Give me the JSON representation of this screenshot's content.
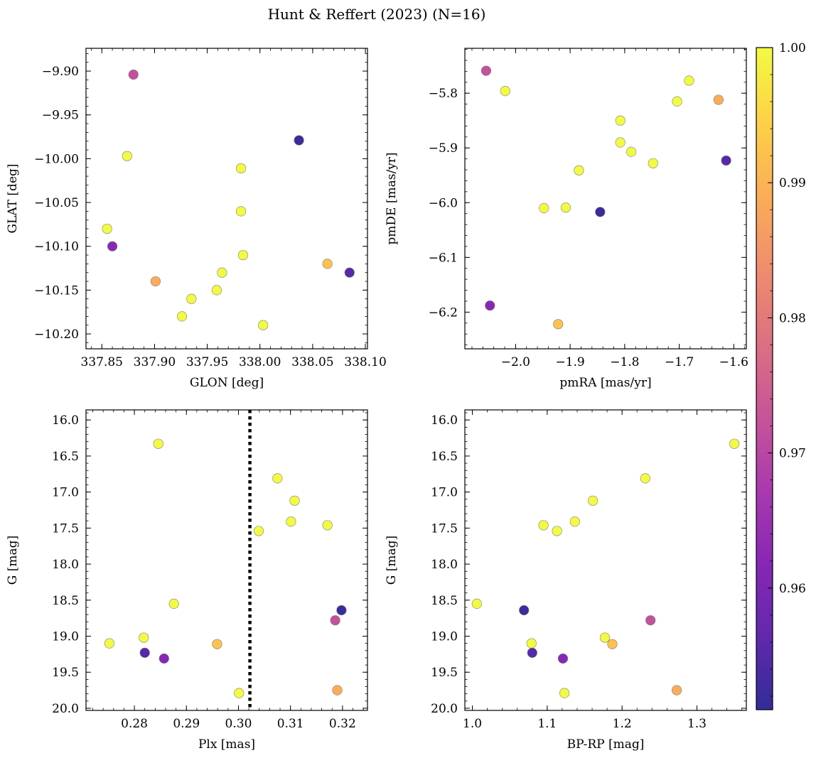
{
  "figure": {
    "title": "Hunt & Reffert (2023) (N=16)",
    "colormap": [
      "#0d0887",
      "#46039f",
      "#7201a8",
      "#9c179e",
      "#bd3786",
      "#d8576b",
      "#ed7953",
      "#fb9f3a",
      "#fdca26",
      "#f0f921"
    ],
    "marker_edge": "#808080",
    "colorbar": {
      "range": [
        0.951,
        1.0
      ],
      "ticks": [
        0.96,
        0.97,
        0.98,
        0.99,
        1.0
      ],
      "tick_labels": [
        "0.96",
        "0.97",
        "0.98",
        "0.99",
        "1.00"
      ]
    }
  },
  "chart_data": [
    {
      "type": "scatter",
      "xlabel": "GLON [deg]",
      "ylabel": "GLAT [deg]",
      "xlim": [
        337.835,
        338.102
      ],
      "ylim": [
        -10.217,
        -9.874
      ],
      "xticks": [
        337.85,
        337.9,
        337.95,
        338.0,
        338.05,
        338.1
      ],
      "xtick_labels": [
        "337.85",
        "337.90",
        "337.95",
        "338.00",
        "338.05",
        "338.10"
      ],
      "yticks": [
        -9.9,
        -9.95,
        -10.0,
        -10.05,
        -10.1,
        -10.15,
        -10.2
      ],
      "ytick_labels": [
        "−9.90",
        "−9.95",
        "−10.00",
        "−10.05",
        "−10.10",
        "−10.15",
        "−10.20"
      ],
      "points": [
        {
          "x": 337.88,
          "y": -9.904,
          "c": 0.972
        },
        {
          "x": 337.874,
          "y": -9.997,
          "c": 1.0
        },
        {
          "x": 338.037,
          "y": -9.979,
          "c": 0.952
        },
        {
          "x": 337.982,
          "y": -10.011,
          "c": 1.0
        },
        {
          "x": 337.982,
          "y": -10.06,
          "c": 1.0
        },
        {
          "x": 337.855,
          "y": -10.08,
          "c": 1.0
        },
        {
          "x": 337.86,
          "y": -10.1,
          "c": 0.962
        },
        {
          "x": 337.984,
          "y": -10.11,
          "c": 1.0
        },
        {
          "x": 338.064,
          "y": -10.12,
          "c": 0.992
        },
        {
          "x": 338.085,
          "y": -10.13,
          "c": 0.955
        },
        {
          "x": 337.964,
          "y": -10.13,
          "c": 1.0
        },
        {
          "x": 337.901,
          "y": -10.14,
          "c": 0.989
        },
        {
          "x": 337.959,
          "y": -10.15,
          "c": 1.0
        },
        {
          "x": 337.935,
          "y": -10.16,
          "c": 1.0
        },
        {
          "x": 337.926,
          "y": -10.18,
          "c": 1.0
        },
        {
          "x": 338.003,
          "y": -10.19,
          "c": 1.0
        }
      ]
    },
    {
      "type": "scatter",
      "xlabel": "pmRA [mas/yr]",
      "ylabel": "pmDE [mas/yr]",
      "xlim": [
        -2.093,
        -1.577
      ],
      "ylim": [
        -6.267,
        -5.718
      ],
      "xticks": [
        -2.0,
        -1.9,
        -1.8,
        -1.7,
        -1.6
      ],
      "xtick_labels": [
        "−2.0",
        "−1.9",
        "−1.8",
        "−1.7",
        "−1.6"
      ],
      "yticks": [
        -5.8,
        -5.9,
        -6.0,
        -6.1,
        -6.2
      ],
      "ytick_labels": [
        "−5.8",
        "−5.9",
        "−6.0",
        "−6.1",
        "−6.2"
      ],
      "points": [
        {
          "x": -2.054,
          "y": -5.759,
          "c": 0.972
        },
        {
          "x": -2.019,
          "y": -5.796,
          "c": 1.0
        },
        {
          "x": -1.682,
          "y": -5.777,
          "c": 1.0
        },
        {
          "x": -1.704,
          "y": -5.815,
          "c": 1.0
        },
        {
          "x": -1.628,
          "y": -5.812,
          "c": 0.989
        },
        {
          "x": -1.808,
          "y": -5.85,
          "c": 1.0
        },
        {
          "x": -1.808,
          "y": -5.89,
          "c": 1.0
        },
        {
          "x": -1.788,
          "y": -5.907,
          "c": 1.0
        },
        {
          "x": -1.748,
          "y": -5.928,
          "c": 1.0
        },
        {
          "x": -1.614,
          "y": -5.923,
          "c": 0.955
        },
        {
          "x": -1.884,
          "y": -5.941,
          "c": 1.0
        },
        {
          "x": -1.948,
          "y": -6.01,
          "c": 1.0
        },
        {
          "x": -1.908,
          "y": -6.009,
          "c": 1.0
        },
        {
          "x": -1.845,
          "y": -6.017,
          "c": 0.952
        },
        {
          "x": -2.047,
          "y": -6.188,
          "c": 0.962
        },
        {
          "x": -1.922,
          "y": -6.222,
          "c": 0.992
        }
      ]
    },
    {
      "type": "scatter",
      "xlabel": "Plx [mas]",
      "ylabel": "G [mag]",
      "xlim": [
        0.2707,
        0.3248
      ],
      "ylim": [
        20.03,
        15.86
      ],
      "xticks": [
        0.28,
        0.29,
        0.3,
        0.31,
        0.32
      ],
      "xtick_labels": [
        "0.28",
        "0.29",
        "0.30",
        "0.31",
        "0.32"
      ],
      "yticks": [
        16.0,
        16.5,
        17.0,
        17.5,
        18.0,
        18.5,
        19.0,
        19.5,
        20.0
      ],
      "ytick_labels": [
        "16.0",
        "16.5",
        "17.0",
        "17.5",
        "18.0",
        "18.5",
        "19.0",
        "19.5",
        "20.0"
      ],
      "vline": {
        "x": 0.3022,
        "style": "dotted"
      },
      "points": [
        {
          "x": 0.2846,
          "y": 16.33,
          "c": 1.0
        },
        {
          "x": 0.3075,
          "y": 16.81,
          "c": 1.0
        },
        {
          "x": 0.3108,
          "y": 17.12,
          "c": 1.0
        },
        {
          "x": 0.3101,
          "y": 17.41,
          "c": 1.0
        },
        {
          "x": 0.3171,
          "y": 17.46,
          "c": 1.0
        },
        {
          "x": 0.3039,
          "y": 17.54,
          "c": 1.0
        },
        {
          "x": 0.2876,
          "y": 18.55,
          "c": 1.0
        },
        {
          "x": 0.3198,
          "y": 18.64,
          "c": 0.952
        },
        {
          "x": 0.3186,
          "y": 18.78,
          "c": 0.972
        },
        {
          "x": 0.2818,
          "y": 19.02,
          "c": 1.0
        },
        {
          "x": 0.2752,
          "y": 19.1,
          "c": 1.0
        },
        {
          "x": 0.2959,
          "y": 19.11,
          "c": 0.992
        },
        {
          "x": 0.282,
          "y": 19.23,
          "c": 0.955
        },
        {
          "x": 0.2857,
          "y": 19.31,
          "c": 0.962
        },
        {
          "x": 0.3001,
          "y": 19.79,
          "c": 1.0
        },
        {
          "x": 0.319,
          "y": 19.75,
          "c": 0.989
        }
      ]
    },
    {
      "type": "scatter",
      "xlabel": "BP-RP [mag]",
      "ylabel": "G [mag]",
      "xlim": [
        0.99,
        1.366
      ],
      "ylim": [
        20.03,
        15.86
      ],
      "xticks": [
        1.0,
        1.1,
        1.2,
        1.3
      ],
      "xtick_labels": [
        "1.0",
        "1.1",
        "1.2",
        "1.3"
      ],
      "yticks": [
        16.0,
        16.5,
        17.0,
        17.5,
        18.0,
        18.5,
        19.0,
        19.5,
        20.0
      ],
      "ytick_labels": [
        "16.0",
        "16.5",
        "17.0",
        "17.5",
        "18.0",
        "18.5",
        "19.0",
        "19.5",
        "20.0"
      ],
      "points": [
        {
          "x": 1.35,
          "y": 16.33,
          "c": 1.0
        },
        {
          "x": 1.231,
          "y": 16.81,
          "c": 1.0
        },
        {
          "x": 1.161,
          "y": 17.12,
          "c": 1.0
        },
        {
          "x": 1.137,
          "y": 17.41,
          "c": 1.0
        },
        {
          "x": 1.095,
          "y": 17.46,
          "c": 1.0
        },
        {
          "x": 1.113,
          "y": 17.54,
          "c": 1.0
        },
        {
          "x": 1.006,
          "y": 18.55,
          "c": 1.0
        },
        {
          "x": 1.069,
          "y": 18.64,
          "c": 0.952
        },
        {
          "x": 1.238,
          "y": 18.78,
          "c": 0.972
        },
        {
          "x": 1.177,
          "y": 19.02,
          "c": 1.0
        },
        {
          "x": 1.079,
          "y": 19.1,
          "c": 1.0
        },
        {
          "x": 1.187,
          "y": 19.11,
          "c": 0.992
        },
        {
          "x": 1.08,
          "y": 19.23,
          "c": 0.955
        },
        {
          "x": 1.121,
          "y": 19.31,
          "c": 0.962
        },
        {
          "x": 1.123,
          "y": 19.79,
          "c": 1.0
        },
        {
          "x": 1.273,
          "y": 19.75,
          "c": 0.989
        }
      ]
    }
  ]
}
